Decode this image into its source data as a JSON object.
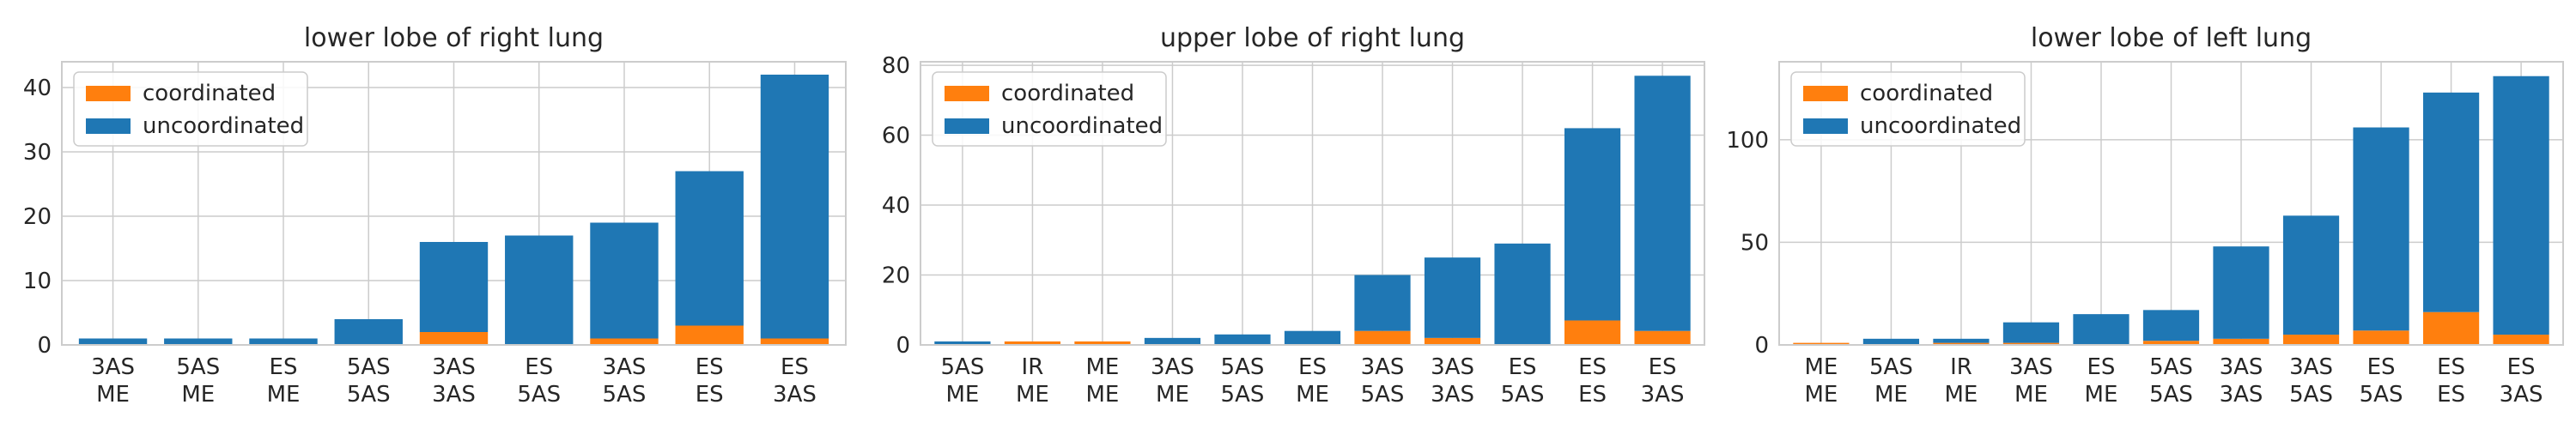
{
  "colors": {
    "coordinated": "#ff7f0e",
    "uncoordinated": "#1f77b4",
    "grid": "#cccccc",
    "frame": "#cccccc"
  },
  "chart_data": [
    {
      "type": "bar",
      "stacked": true,
      "title": "lower lobe of right lung",
      "categories": [
        [
          "3AS",
          "ME"
        ],
        [
          "5AS",
          "ME"
        ],
        [
          "ES",
          "ME"
        ],
        [
          "5AS",
          "5AS"
        ],
        [
          "3AS",
          "3AS"
        ],
        [
          "ES",
          "5AS"
        ],
        [
          "3AS",
          "5AS"
        ],
        [
          "ES",
          "ES"
        ],
        [
          "ES",
          "3AS"
        ]
      ],
      "series": [
        {
          "name": "coordinated",
          "values": [
            0,
            0,
            0,
            0,
            2,
            0,
            1,
            3,
            1
          ]
        },
        {
          "name": "uncoordinated",
          "values": [
            1,
            1,
            1,
            4,
            14,
            17,
            18,
            24,
            41
          ]
        }
      ],
      "ylim": [
        0,
        44
      ],
      "yticks": [
        0,
        10,
        20,
        30,
        40
      ],
      "grid": true,
      "legend": "top-left"
    },
    {
      "type": "bar",
      "stacked": true,
      "title": "upper lobe of right lung",
      "categories": [
        [
          "5AS",
          "ME"
        ],
        [
          "IR",
          "ME"
        ],
        [
          "ME",
          "ME"
        ],
        [
          "3AS",
          "ME"
        ],
        [
          "5AS",
          "5AS"
        ],
        [
          "ES",
          "ME"
        ],
        [
          "3AS",
          "5AS"
        ],
        [
          "3AS",
          "3AS"
        ],
        [
          "ES",
          "5AS"
        ],
        [
          "ES",
          "ES"
        ],
        [
          "ES",
          "3AS"
        ]
      ],
      "series": [
        {
          "name": "coordinated",
          "values": [
            0,
            1,
            1,
            0,
            0,
            0,
            4,
            2,
            0,
            7,
            4
          ]
        },
        {
          "name": "uncoordinated",
          "values": [
            1,
            0,
            0,
            2,
            3,
            4,
            16,
            23,
            29,
            55,
            73
          ]
        }
      ],
      "ylim": [
        0,
        81
      ],
      "yticks": [
        0,
        20,
        40,
        60,
        80
      ],
      "grid": true,
      "legend": "top-left"
    },
    {
      "type": "bar",
      "stacked": true,
      "title": "lower lobe of left lung",
      "categories": [
        [
          "ME",
          "ME"
        ],
        [
          "5AS",
          "ME"
        ],
        [
          "IR",
          "ME"
        ],
        [
          "3AS",
          "ME"
        ],
        [
          "ES",
          "ME"
        ],
        [
          "5AS",
          "5AS"
        ],
        [
          "3AS",
          "3AS"
        ],
        [
          "3AS",
          "5AS"
        ],
        [
          "ES",
          "5AS"
        ],
        [
          "ES",
          "ES"
        ],
        [
          "ES",
          "3AS"
        ]
      ],
      "series": [
        {
          "name": "coordinated",
          "values": [
            1,
            0,
            1,
            1,
            0,
            2,
            3,
            5,
            7,
            16,
            5
          ]
        },
        {
          "name": "uncoordinated",
          "values": [
            0,
            3,
            2,
            10,
            15,
            15,
            45,
            58,
            99,
            107,
            126
          ]
        }
      ],
      "ylim": [
        0,
        138
      ],
      "yticks": [
        0,
        50,
        100
      ],
      "grid": true,
      "legend": "top-left"
    }
  ]
}
